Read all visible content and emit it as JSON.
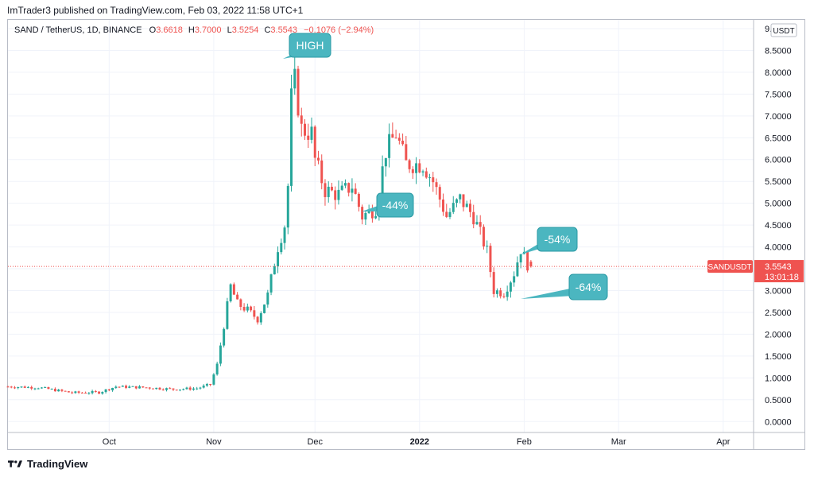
{
  "header": {
    "publisher_line": "ImTrader3 published on TradingView.com, Feb 03, 2022 11:58 UTC+1"
  },
  "legend": {
    "symbol": "SAND / TetherUS, 1D, BINANCE",
    "o_label": "O",
    "o": "3.6618",
    "h_label": "H",
    "h": "3.7000",
    "l_label": "L",
    "l": "3.5254",
    "c_label": "C",
    "c": "3.5543",
    "change": "−0.1076 (−2.94%)"
  },
  "price_axis": {
    "currency": "USDT"
  },
  "last_price_tag": {
    "symbol": "SANDUSDT",
    "price": "3.5543",
    "countdown": "13:01:18"
  },
  "annotations": [
    {
      "text": "HIGH"
    },
    {
      "text": "-44%"
    },
    {
      "text": "-54%"
    },
    {
      "text": "-64%"
    }
  ],
  "footer": {
    "brand": "TradingView"
  },
  "colors": {
    "up": "#26a69a",
    "down": "#ef5350",
    "callout": "#4bb6c0",
    "grid": "#f0f3fa"
  },
  "chart_data": {
    "type": "candlestick",
    "title": "SAND / TetherUS, 1D, BINANCE",
    "ylim": [
      -0.25,
      9.2
    ],
    "y_ticks": [
      "0.0000",
      "0.5000",
      "1.0000",
      "1.5000",
      "2.0000",
      "2.5000",
      "3.0000",
      "3.5000",
      "4.0000",
      "4.5000",
      "5.0000",
      "5.5000",
      "6.0000",
      "6.5000",
      "7.0000",
      "7.5000",
      "8.0000",
      "8.5000",
      "9.0000"
    ],
    "y_tick_values": [
      0,
      0.5,
      1,
      1.5,
      2,
      2.5,
      3,
      3.5,
      4,
      4.5,
      5,
      5.5,
      6,
      6.5,
      7,
      7.5,
      8,
      8.5,
      9
    ],
    "x_tick_labels": [
      "Oct",
      "Nov",
      "Dec",
      "2022",
      "Feb",
      "Mar",
      "Apr"
    ],
    "x_tick_dates": [
      "2021-10-01",
      "2021-11-01",
      "2021-12-01",
      "2022-01-01",
      "2022-02-01",
      "2022-03-01",
      "2022-04-01"
    ],
    "x_range": [
      "2021-09-01",
      "2022-04-10"
    ],
    "close_path": [
      [
        "2021-09-01",
        0.8
      ],
      [
        "2021-09-10",
        0.78
      ],
      [
        "2021-09-20",
        0.66
      ],
      [
        "2021-09-28",
        0.67
      ],
      [
        "2021-10-03",
        0.8
      ],
      [
        "2021-10-12",
        0.78
      ],
      [
        "2021-10-20",
        0.74
      ],
      [
        "2021-10-27",
        0.76
      ],
      [
        "2021-10-31",
        0.85
      ],
      [
        "2021-11-02",
        1.3
      ],
      [
        "2021-11-04",
        2.2
      ],
      [
        "2021-11-06",
        3.1
      ],
      [
        "2021-11-08",
        2.7
      ],
      [
        "2021-11-11",
        2.55
      ],
      [
        "2021-11-14",
        2.35
      ],
      [
        "2021-11-17",
        2.9
      ],
      [
        "2021-11-20",
        4.0
      ],
      [
        "2021-11-22",
        4.5
      ],
      [
        "2021-11-23",
        5.4
      ],
      [
        "2021-11-24",
        7.4
      ],
      [
        "2021-11-25",
        7.8
      ],
      [
        "2021-11-27",
        6.7
      ],
      [
        "2021-11-30",
        6.6
      ],
      [
        "2021-12-01",
        6.0
      ],
      [
        "2021-12-04",
        5.3
      ],
      [
        "2021-12-08",
        5.2
      ],
      [
        "2021-12-12",
        5.4
      ],
      [
        "2021-12-15",
        4.7
      ],
      [
        "2021-12-19",
        4.9
      ],
      [
        "2021-12-22",
        6.2
      ],
      [
        "2021-12-25",
        6.6
      ],
      [
        "2021-12-28",
        5.9
      ],
      [
        "2022-01-02",
        5.9
      ],
      [
        "2022-01-05",
        5.5
      ],
      [
        "2022-01-09",
        4.7
      ],
      [
        "2022-01-13",
        5.1
      ],
      [
        "2022-01-17",
        4.7
      ],
      [
        "2022-01-21",
        3.9
      ],
      [
        "2022-01-23",
        3.0
      ],
      [
        "2022-01-26",
        2.95
      ],
      [
        "2022-01-29",
        3.4
      ],
      [
        "2022-01-31",
        3.95
      ],
      [
        "2022-02-02",
        3.6
      ],
      [
        "2022-02-03",
        3.55
      ]
    ],
    "highlighted_points": [
      {
        "date": "2021-11-25",
        "price": 8.5,
        "label": "HIGH"
      },
      {
        "date": "2022-02-03",
        "price": 3.5543,
        "label": "last"
      }
    ]
  }
}
